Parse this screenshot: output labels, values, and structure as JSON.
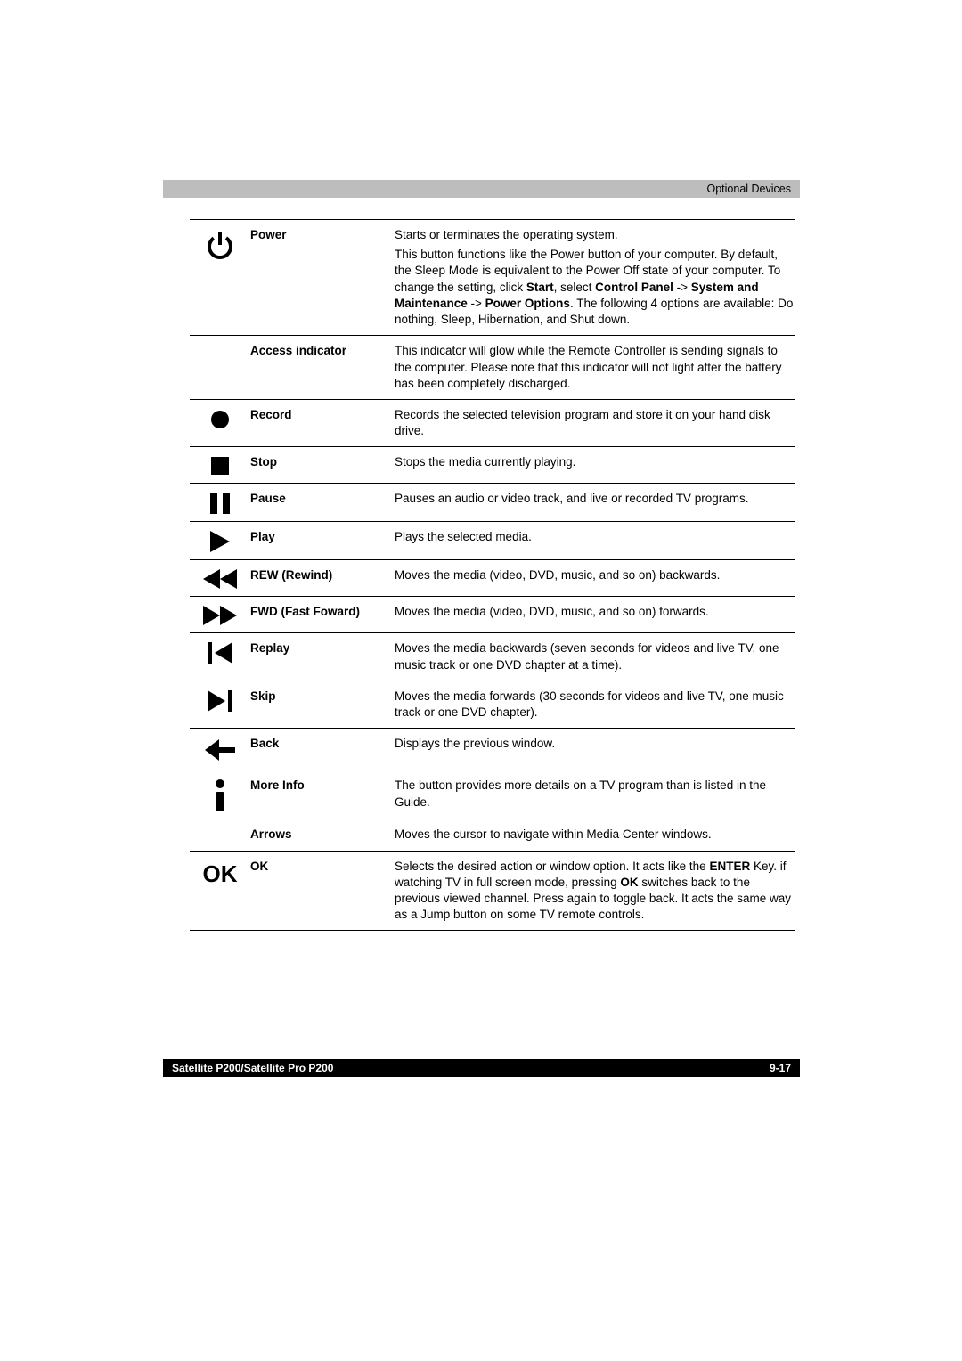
{
  "header": {
    "section": "Optional Devices"
  },
  "rows": [
    {
      "icon": "power-icon",
      "label": "Power",
      "desc": [
        "Starts or terminates the operating system.",
        "This button functions like the Power button of your computer. By default, the Sleep Mode is equivalent to the Power Off state of your computer. To change the setting, click <b>Start</b>, select <b>Control Panel</b> -> <b>System and Maintenance</b> -> <b>Power Options</b>. The following 4 options are available: Do nothing, Sleep, Hibernation, and Shut down."
      ]
    },
    {
      "icon": "",
      "label": "Access indicator",
      "desc": [
        "This indicator will glow while the Remote Controller is sending signals to the computer. Please note that this indicator will not light after the battery has been completely discharged."
      ]
    },
    {
      "icon": "record-icon",
      "label": "Record",
      "desc": [
        "Records the selected television program and store it on your hand disk drive."
      ]
    },
    {
      "icon": "stop-icon",
      "label": "Stop",
      "desc": [
        "Stops the media currently playing."
      ]
    },
    {
      "icon": "pause-icon",
      "label": "Pause",
      "desc": [
        "Pauses an audio or video track, and live or recorded TV programs."
      ]
    },
    {
      "icon": "play-icon",
      "label": "Play",
      "desc": [
        "Plays the selected media."
      ]
    },
    {
      "icon": "rewind-icon",
      "label": "REW (Rewind)",
      "desc": [
        "Moves the media (video, DVD, music, and so on) backwards."
      ]
    },
    {
      "icon": "fast-forward-icon",
      "label": "FWD (Fast Foward)",
      "desc": [
        "Moves the media (video, DVD, music, and so on) forwards."
      ]
    },
    {
      "icon": "replay-icon",
      "label": "Replay",
      "desc": [
        "Moves the media backwards (seven seconds for videos and live TV, one music track or one DVD chapter at a time)."
      ]
    },
    {
      "icon": "skip-icon",
      "label": "Skip",
      "desc": [
        "Moves the media forwards (30 seconds for videos and live TV, one music track or one DVD chapter)."
      ]
    },
    {
      "icon": "back-icon",
      "label": "Back",
      "desc": [
        "Displays the previous window."
      ]
    },
    {
      "icon": "info-icon",
      "label": "More Info",
      "desc": [
        "The button provides more details on a TV program than is listed in the Guide."
      ]
    },
    {
      "icon": "",
      "label": "Arrows",
      "desc": [
        "Moves the cursor to navigate within Media Center windows."
      ]
    },
    {
      "icon": "ok-icon",
      "label": "OK",
      "desc": [
        "Selects the desired action or window option. It acts like the <b>ENTER</b> Key. if watching TV in full screen mode, pressing <b>OK</b> switches back to the previous viewed channel. Press again to toggle back. It acts the same way as a Jump button on some TV remote controls."
      ]
    }
  ],
  "footer": {
    "left": "Satellite P200/Satellite Pro P200",
    "right": "9-17"
  }
}
